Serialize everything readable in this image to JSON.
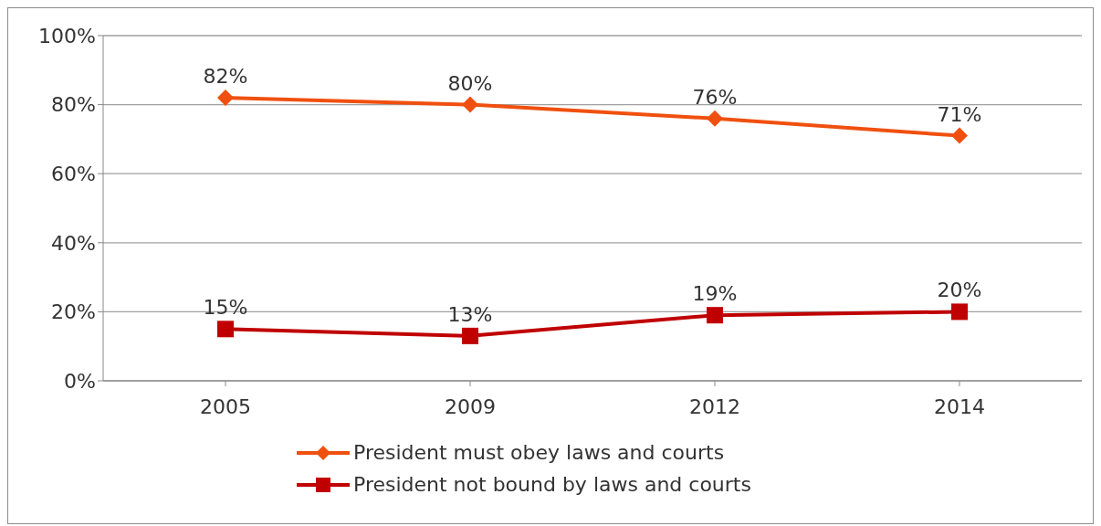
{
  "chart_data": {
    "type": "line",
    "categories": [
      "2005",
      "2009",
      "2012",
      "2014"
    ],
    "series": [
      {
        "name": "President must obey laws and courts",
        "color": "#f0500f",
        "marker": "diamond",
        "values": [
          82,
          80,
          76,
          71
        ],
        "value_labels": [
          "82%",
          "80%",
          "76%",
          "71%"
        ]
      },
      {
        "name": "President not bound by laws and courts",
        "color": "#c00000",
        "marker": "square",
        "values": [
          15,
          13,
          19,
          20
        ],
        "value_labels": [
          "15%",
          "13%",
          "19%",
          "20%"
        ]
      }
    ],
    "ylim": [
      0,
      100
    ],
    "yticks": [
      {
        "value": 0,
        "label": "0%"
      },
      {
        "value": 20,
        "label": "20%"
      },
      {
        "value": 40,
        "label": "40%"
      },
      {
        "value": 60,
        "label": "60%"
      },
      {
        "value": 80,
        "label": "80%"
      },
      {
        "value": 100,
        "label": "100%"
      }
    ],
    "grid": "y",
    "legend": "bottom"
  }
}
